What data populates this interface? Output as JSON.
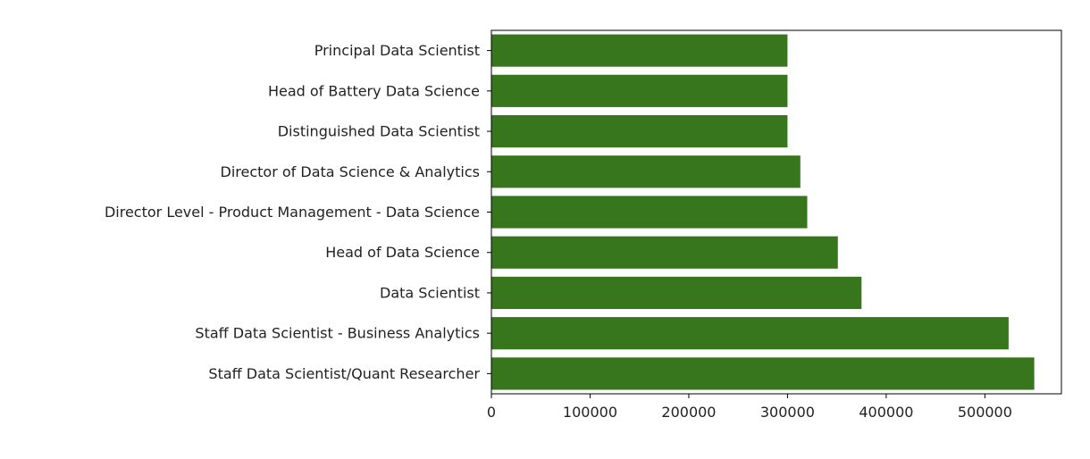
{
  "chart_data": {
    "type": "bar",
    "orientation": "horizontal",
    "categories": [
      "Staff Data Scientist/Quant Researcher",
      "Staff Data Scientist - Business Analytics",
      "Data Scientist",
      "Head of Data Science",
      "Director Level - Product Management - Data Science",
      "Director of Data Science & Analytics",
      "Distinguished Data Scientist",
      "Head of Battery Data Science",
      "Principal Data Scientist"
    ],
    "values": [
      550000,
      524000,
      375000,
      351000,
      320000,
      313000,
      300000,
      300000,
      300000
    ],
    "title": "",
    "xlabel": "",
    "ylabel": "",
    "xlim": [
      0,
      577500
    ],
    "xticks": [
      0,
      100000,
      200000,
      300000,
      400000,
      500000
    ],
    "xtick_labels": [
      "0",
      "100000",
      "200000",
      "300000",
      "400000",
      "500000"
    ],
    "bar_color": "#38761d",
    "grid": false,
    "legend": "none"
  }
}
